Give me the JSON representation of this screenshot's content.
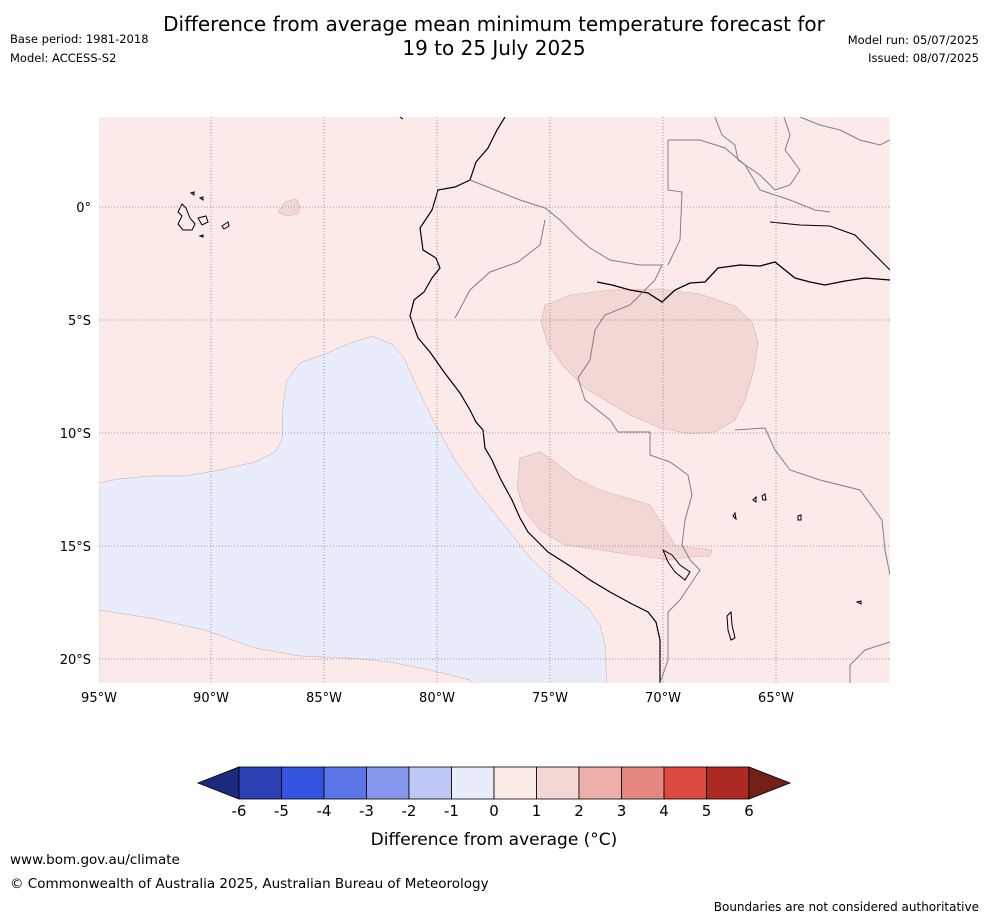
{
  "title": {
    "line1": "Difference from average mean minimum temperature forecast for",
    "line2": "19 to 25 July 2025"
  },
  "meta": {
    "base_period": "Base period: 1981-2018",
    "model": "Model: ACCESS-S2",
    "model_run": "Model run: 05/07/2025",
    "issued": "Issued: 08/07/2025"
  },
  "map": {
    "lon_labels": [
      "95°W",
      "90°W",
      "85°W",
      "80°W",
      "75°W",
      "70°W",
      "65°W"
    ],
    "lat_labels": [
      "0°",
      "5°S",
      "10°S",
      "15°S",
      "20°S"
    ],
    "background_anomaly_color": "#fbeae8",
    "anomaly_regions": [
      {
        "name": "ocean-cool-region",
        "class": "0 to -1",
        "color": "#e8ecfb"
      },
      {
        "name": "amazon-warm-region",
        "class": "1 to 2",
        "color": "#f3d7d4"
      },
      {
        "name": "peru-bolivia-warm-region",
        "class": "1 to 2",
        "color": "#f3d7d4"
      },
      {
        "name": "galapagos-warm-region",
        "class": "1 to 2",
        "color": "#f3d7d4"
      }
    ]
  },
  "colorbar": {
    "ticks": [
      "-6",
      "-5",
      "-4",
      "-3",
      "-2",
      "-1",
      "0",
      "1",
      "2",
      "3",
      "4",
      "5",
      "6"
    ],
    "colors": [
      "#1b2a7a",
      "#2b40b5",
      "#3354e0",
      "#5b74e6",
      "#8596ec",
      "#bec7f5",
      "#e8ecfb",
      "#fbeae8",
      "#f3d7d4",
      "#eeaea9",
      "#e5867f",
      "#dc4a3f",
      "#ad2a23",
      "#73201b"
    ],
    "label": "Difference from average (°C)"
  },
  "footer": {
    "url": "www.bom.gov.au/climate",
    "copyright": "© Commonwealth of Australia 2025, Australian Bureau of Meteorology",
    "note": "Boundaries are not considered authoritative"
  }
}
